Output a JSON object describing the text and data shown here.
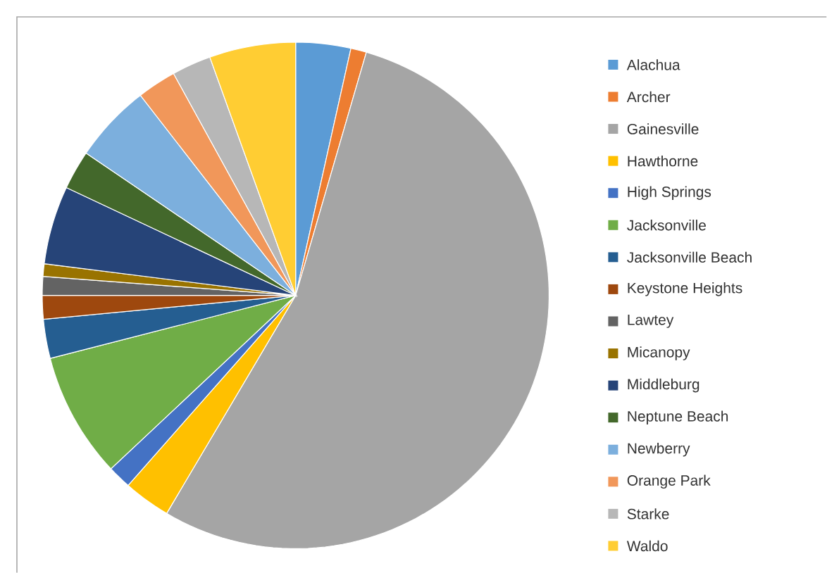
{
  "chart_data": {
    "type": "pie",
    "legend": "right",
    "categories": [
      "Alachua",
      "Archer",
      "Gainesville",
      "Hawthorne",
      "High Springs",
      "Jacksonville",
      "Jacksonville Beach",
      "Keystone Heights",
      "Lawtey",
      "Micanopy",
      "Middleburg",
      "Neptune Beach",
      "Newberry",
      "Orange Park",
      "Starke",
      "Waldo"
    ],
    "values": [
      3.5,
      1,
      54,
      3,
      1.5,
      8,
      2.5,
      1.5,
      1.2,
      0.8,
      5,
      2.5,
      5,
      2.5,
      2.5,
      5.5
    ],
    "colors": [
      "#5b9bd5",
      "#ed7d31",
      "#a5a5a5",
      "#ffc000",
      "#4472c4",
      "#70ad47",
      "#255e91",
      "#9e480e",
      "#636363",
      "#997300",
      "#264478",
      "#43682b",
      "#7cafdd",
      "#f1975a",
      "#b7b7b7",
      "#ffcd33"
    ]
  }
}
